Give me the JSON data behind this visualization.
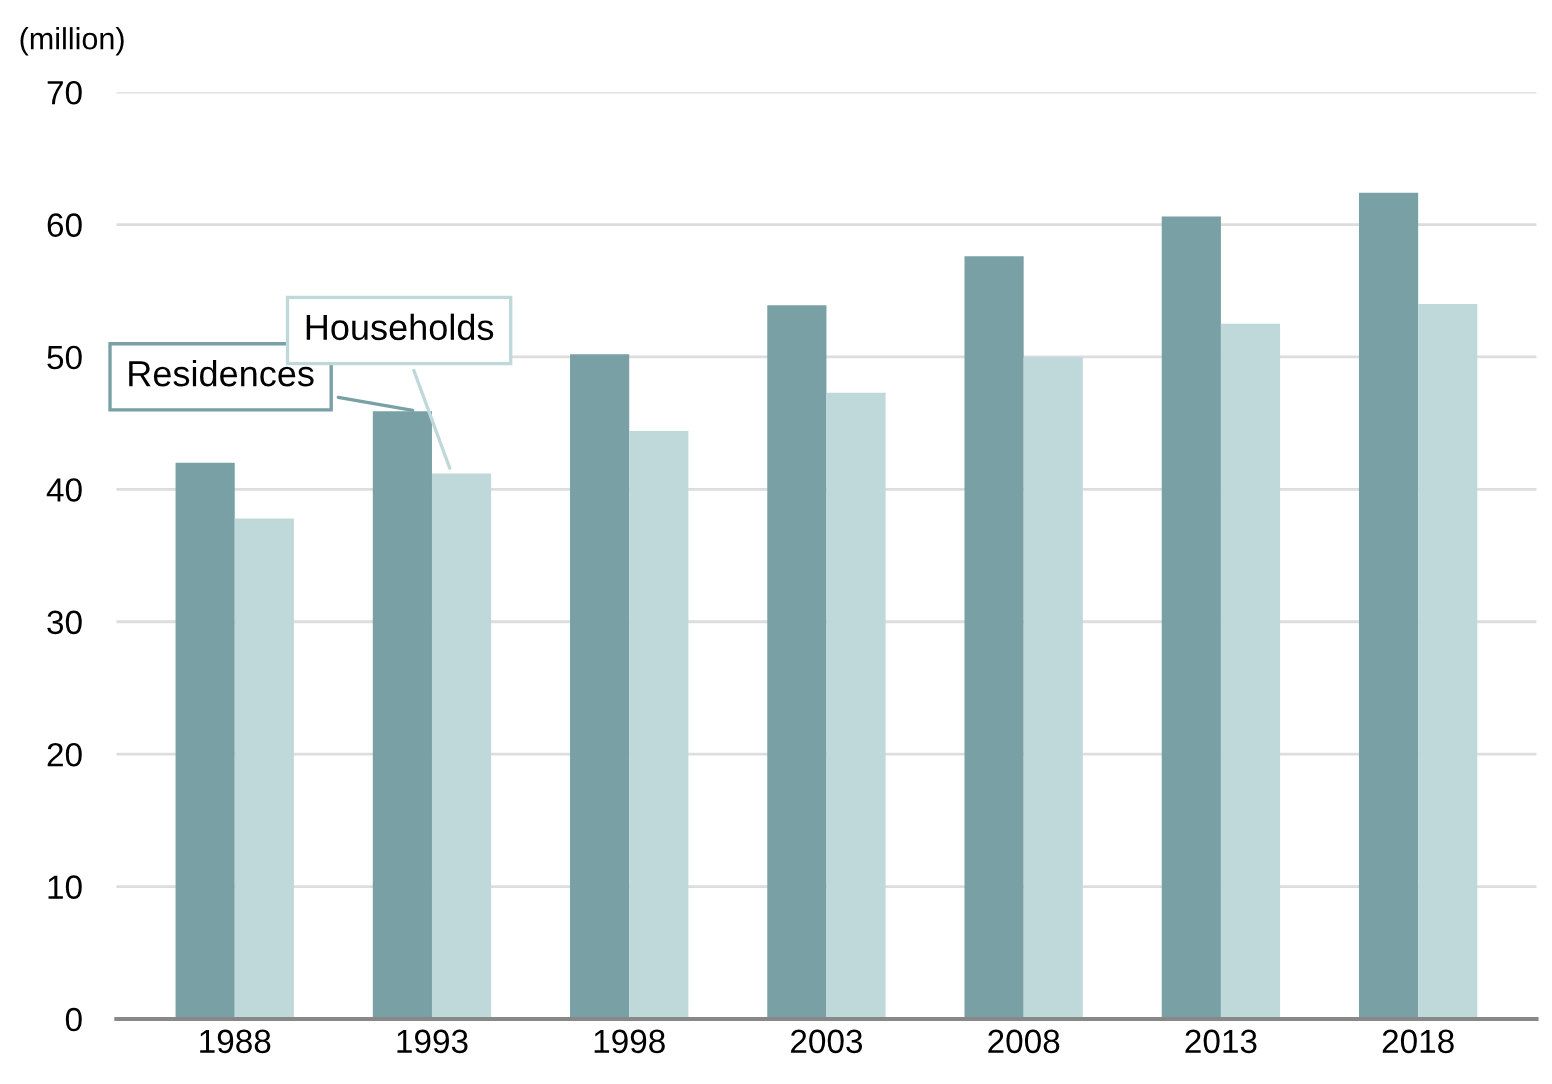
{
  "chart_data": {
    "type": "bar",
    "ylabel": "(million)",
    "categories": [
      "1988",
      "1993",
      "1998",
      "2003",
      "2008",
      "2013",
      "2018"
    ],
    "series": [
      {
        "name": "Residences",
        "color": "#78a0a5",
        "values": [
          42.0,
          45.9,
          50.2,
          53.9,
          57.6,
          60.6,
          62.4
        ]
      },
      {
        "name": "Households",
        "color": "#bfd9da",
        "values": [
          37.8,
          41.2,
          44.4,
          47.3,
          50.0,
          52.5,
          54.0
        ]
      }
    ],
    "ylim": [
      0,
      70
    ],
    "yticks": [
      0,
      10,
      20,
      30,
      40,
      50,
      60,
      70
    ],
    "grid": "y"
  }
}
